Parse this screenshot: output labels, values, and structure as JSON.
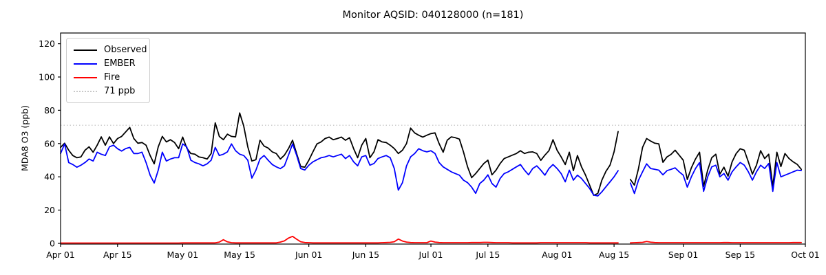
{
  "title": "Monitor AQSID: 040128000 (n=181)",
  "legend": {
    "items": [
      {
        "label": "Observed",
        "color": "#000000",
        "style": "solid"
      },
      {
        "label": "EMBER",
        "color": "#0000ff",
        "style": "solid"
      },
      {
        "label": "Fire",
        "color": "#ff0000",
        "style": "solid"
      },
      {
        "label": "71 ppb",
        "color": "#c8c8c8",
        "style": "dotted"
      }
    ]
  },
  "chart_data": {
    "type": "line",
    "title": "Monitor AQSID: 040128000 (n=181)",
    "xlabel": "",
    "ylabel": "MDA8 O3 (ppb)",
    "ylim": [
      0,
      126
    ],
    "yticks": [
      0,
      20,
      40,
      60,
      80,
      100,
      120
    ],
    "grid": false,
    "legend_position": "upper left",
    "x_unit": "day index from Apr 01",
    "x_days_total": 183,
    "xticks": [
      {
        "label": "Apr 01",
        "day": 0
      },
      {
        "label": "Apr 15",
        "day": 14
      },
      {
        "label": "May 01",
        "day": 30
      },
      {
        "label": "May 15",
        "day": 44
      },
      {
        "label": "Jun 01",
        "day": 61
      },
      {
        "label": "Jun 15",
        "day": 75
      },
      {
        "label": "Jul 01",
        "day": 91
      },
      {
        "label": "Jul 15",
        "day": 105
      },
      {
        "label": "Aug 01",
        "day": 122
      },
      {
        "label": "Aug 15",
        "day": 136
      },
      {
        "label": "Sep 01",
        "day": 153
      },
      {
        "label": "Sep 15",
        "day": 167
      },
      {
        "label": "Oct 01",
        "day": 183
      }
    ],
    "threshold": {
      "value": 71,
      "label": "71 ppb",
      "color": "#c8c8c8",
      "style": "dotted"
    },
    "missing_days": [
      "Aug 17",
      "Aug 18"
    ],
    "n_points": 181,
    "series": [
      {
        "name": "Observed",
        "color": "#000000",
        "values": [
          57.7,
          60.2,
          56,
          52.8,
          51.5,
          52,
          56,
          58,
          54.8,
          59,
          64,
          59,
          64,
          60,
          63,
          64.3,
          67,
          69.7,
          63,
          60.2,
          60.6,
          59,
          52.8,
          47.8,
          58,
          64.3,
          61,
          62.3,
          60.6,
          56.9,
          63.9,
          57.3,
          54,
          53.6,
          52,
          51.5,
          50.7,
          54,
          72.5,
          64.3,
          62.3,
          65.6,
          64.3,
          64,
          78.4,
          70.5,
          58,
          49.5,
          50.3,
          62,
          58.5,
          57.3,
          55,
          54,
          50.7,
          53,
          57,
          62,
          54,
          46.2,
          45.8,
          50,
          55,
          59.8,
          61,
          63,
          63.9,
          62.3,
          63,
          63.9,
          62,
          63.5,
          57,
          51.5,
          59,
          63,
          51.5,
          55,
          62.3,
          61,
          60.6,
          59,
          57,
          54,
          56,
          60,
          69.3,
          66.4,
          65,
          63.9,
          65,
          66,
          66.4,
          60,
          54.8,
          62,
          64,
          63.5,
          62.7,
          55,
          46,
          39.5,
          42,
          45,
          48,
          50,
          41.2,
          44,
          48,
          51,
          52,
          53,
          54,
          55.7,
          54,
          54.8,
          55,
          54,
          49.9,
          53,
          55.7,
          62.3,
          56,
          52,
          47.4,
          54.8,
          43.7,
          52.8,
          46,
          41,
          35,
          28.9,
          30,
          38,
          43.3,
          47,
          55,
          67.2,
          null,
          null,
          38.4,
          35,
          45,
          57.7,
          63,
          61.5,
          60.2,
          59.8,
          48.7,
          52,
          53.5,
          56,
          53,
          50,
          38.4,
          45.4,
          50.7,
          54.8,
          34.2,
          44,
          51.5,
          53.6,
          41.6,
          45.8,
          40.4,
          49,
          54,
          56.9,
          56,
          49,
          41.6,
          47,
          55.7,
          51,
          53.6,
          34.2,
          54.8,
          46.2,
          54,
          51,
          49,
          47.5,
          44.5
        ]
      },
      {
        "name": "EMBER",
        "color": "#0000ff",
        "values": [
          54,
          59.8,
          48.6,
          47.4,
          45.8,
          47,
          48.6,
          50.7,
          49.5,
          54.8,
          53.6,
          52.8,
          58,
          59,
          56.9,
          55.5,
          57,
          57.7,
          54,
          54,
          54.8,
          48.6,
          41,
          36.3,
          44,
          54.8,
          49.5,
          50.7,
          51.5,
          51.5,
          59.8,
          58,
          50,
          48.6,
          47.8,
          46.6,
          47.8,
          50,
          57.7,
          52.8,
          53.6,
          55,
          59.8,
          55.7,
          53.6,
          52.8,
          50,
          39.2,
          44,
          50.7,
          52.8,
          50,
          47.4,
          46,
          44.9,
          46.6,
          53,
          59.8,
          53,
          45,
          44.1,
          47,
          49,
          50.3,
          51.5,
          52,
          52.8,
          52,
          52.8,
          53.6,
          51,
          52.8,
          49,
          46.6,
          52,
          52.8,
          47,
          48,
          51,
          52,
          52.8,
          51.5,
          45,
          32,
          36.5,
          46.6,
          52,
          54,
          56.9,
          55.7,
          55,
          55.7,
          54,
          48.6,
          46,
          44.5,
          43,
          42,
          41,
          38,
          36.5,
          33.8,
          30.1,
          36,
          38,
          41.2,
          36,
          33.8,
          39,
          42,
          43,
          44.5,
          46,
          47.4,
          44,
          41.2,
          45,
          46.6,
          44,
          41,
          45,
          47.4,
          45,
          42,
          37,
          44,
          38,
          41,
          39,
          36,
          33,
          29,
          28.5,
          31,
          34,
          37,
          40,
          43.7,
          null,
          null,
          36.3,
          30,
          38,
          43,
          47.8,
          45,
          44.5,
          44,
          41.2,
          43.7,
          44.5,
          45.4,
          43,
          41,
          33.8,
          40,
          45,
          48.6,
          31.3,
          40,
          46,
          47,
          40,
          42,
          38,
          43,
          46,
          48.6,
          47,
          43,
          38,
          43,
          47,
          45,
          48,
          31.3,
          48.6,
          40,
          41,
          42,
          43,
          44,
          43.7
        ]
      },
      {
        "name": "Fire",
        "color": "#ff0000",
        "values": [
          0.2,
          0.2,
          0.2,
          0.2,
          0.2,
          0.2,
          0.2,
          0.2,
          0.2,
          0.2,
          0.2,
          0.2,
          0.2,
          0.2,
          0.2,
          0.2,
          0.2,
          0.2,
          0.2,
          0.2,
          0.2,
          0.2,
          0.2,
          0.2,
          0.2,
          0.2,
          0.2,
          0.2,
          0.2,
          0.2,
          0.3,
          0.3,
          0.3,
          0.3,
          0.3,
          0.3,
          0.3,
          0.3,
          0.3,
          0.8,
          2.2,
          0.9,
          0.4,
          0.3,
          0.3,
          0.3,
          0.3,
          0.3,
          0.3,
          0.3,
          0.3,
          0.3,
          0.3,
          0.3,
          0.8,
          1.5,
          3.2,
          4.2,
          2.5,
          1.0,
          0.5,
          0.4,
          0.3,
          0.3,
          0.3,
          0.3,
          0.3,
          0.3,
          0.3,
          0.3,
          0.3,
          0.3,
          0.3,
          0.3,
          0.3,
          0.3,
          0.3,
          0.3,
          0.3,
          0.4,
          0.5,
          0.6,
          1.0,
          2.6,
          1.4,
          0.8,
          0.5,
          0.4,
          0.4,
          0.4,
          0.4,
          1.4,
          0.8,
          0.5,
          0.4,
          0.4,
          0.4,
          0.4,
          0.4,
          0.4,
          0.4,
          0.5,
          0.5,
          0.5,
          0.6,
          0.6,
          0.5,
          0.4,
          0.4,
          0.4,
          0.4,
          0.3,
          0.3,
          0.3,
          0.3,
          0.3,
          0.3,
          0.3,
          0.4,
          0.4,
          0.4,
          0.4,
          0.4,
          0.4,
          0.4,
          0.4,
          0.4,
          0.4,
          0.4,
          0.4,
          0.3,
          0.3,
          0.3,
          0.3,
          0.3,
          0.3,
          0.3,
          0.3,
          null,
          null,
          0.3,
          0.4,
          0.5,
          0.6,
          1.1,
          0.7,
          0.5,
          0.4,
          0.4,
          0.4,
          0.4,
          0.4,
          0.4,
          0.4,
          0.4,
          0.4,
          0.4,
          0.4,
          0.4,
          0.4,
          0.4,
          0.4,
          0.4,
          0.5,
          0.5,
          0.4,
          0.4,
          0.4,
          0.4,
          0.4,
          0.4,
          0.4,
          0.4,
          0.4,
          0.4,
          0.4,
          0.4,
          0.4,
          0.4,
          0.4,
          0.5,
          0.5,
          0.5
        ]
      }
    ]
  }
}
